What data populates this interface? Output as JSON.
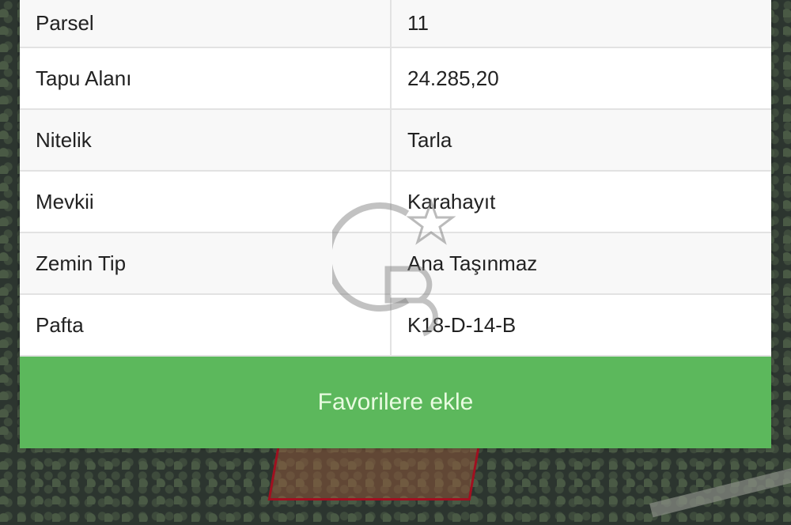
{
  "table": {
    "rows": [
      {
        "label": "Parsel",
        "value": "11"
      },
      {
        "label": "Tapu Alanı",
        "value": "24.285,20"
      },
      {
        "label": "Nitelik",
        "value": "Tarla"
      },
      {
        "label": "Mevkii",
        "value": "Karahayıt"
      },
      {
        "label": "Zemin Tip",
        "value": "Ana Taşınmaz"
      },
      {
        "label": "Pafta",
        "value": "K18-D-14-B"
      }
    ]
  },
  "favorite_button": {
    "label": "Favorilere ekle",
    "color": "#5cb85c"
  },
  "watermark": {
    "text": "CB",
    "icon": "star-icon"
  }
}
